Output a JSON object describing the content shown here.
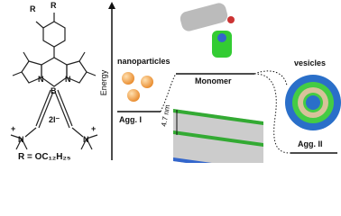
{
  "structure": {
    "substituent_labels": [
      "R",
      "R"
    ],
    "boron_atoms": [
      "N",
      "B",
      "N"
    ],
    "counterion": "2I⁻",
    "charges": [
      "+",
      "+"
    ],
    "amine_atoms": [
      "N",
      "N"
    ],
    "formula": "R = OC₁₂H₂₅"
  },
  "energy_diagram": {
    "axis_label": "Energy",
    "nanoparticles": "nanoparticles",
    "agg1": "Agg. I",
    "monomer": "Monomer",
    "vesicles": "vesicles",
    "thickness": "4.7 nm",
    "agg2": "Agg. II"
  }
}
